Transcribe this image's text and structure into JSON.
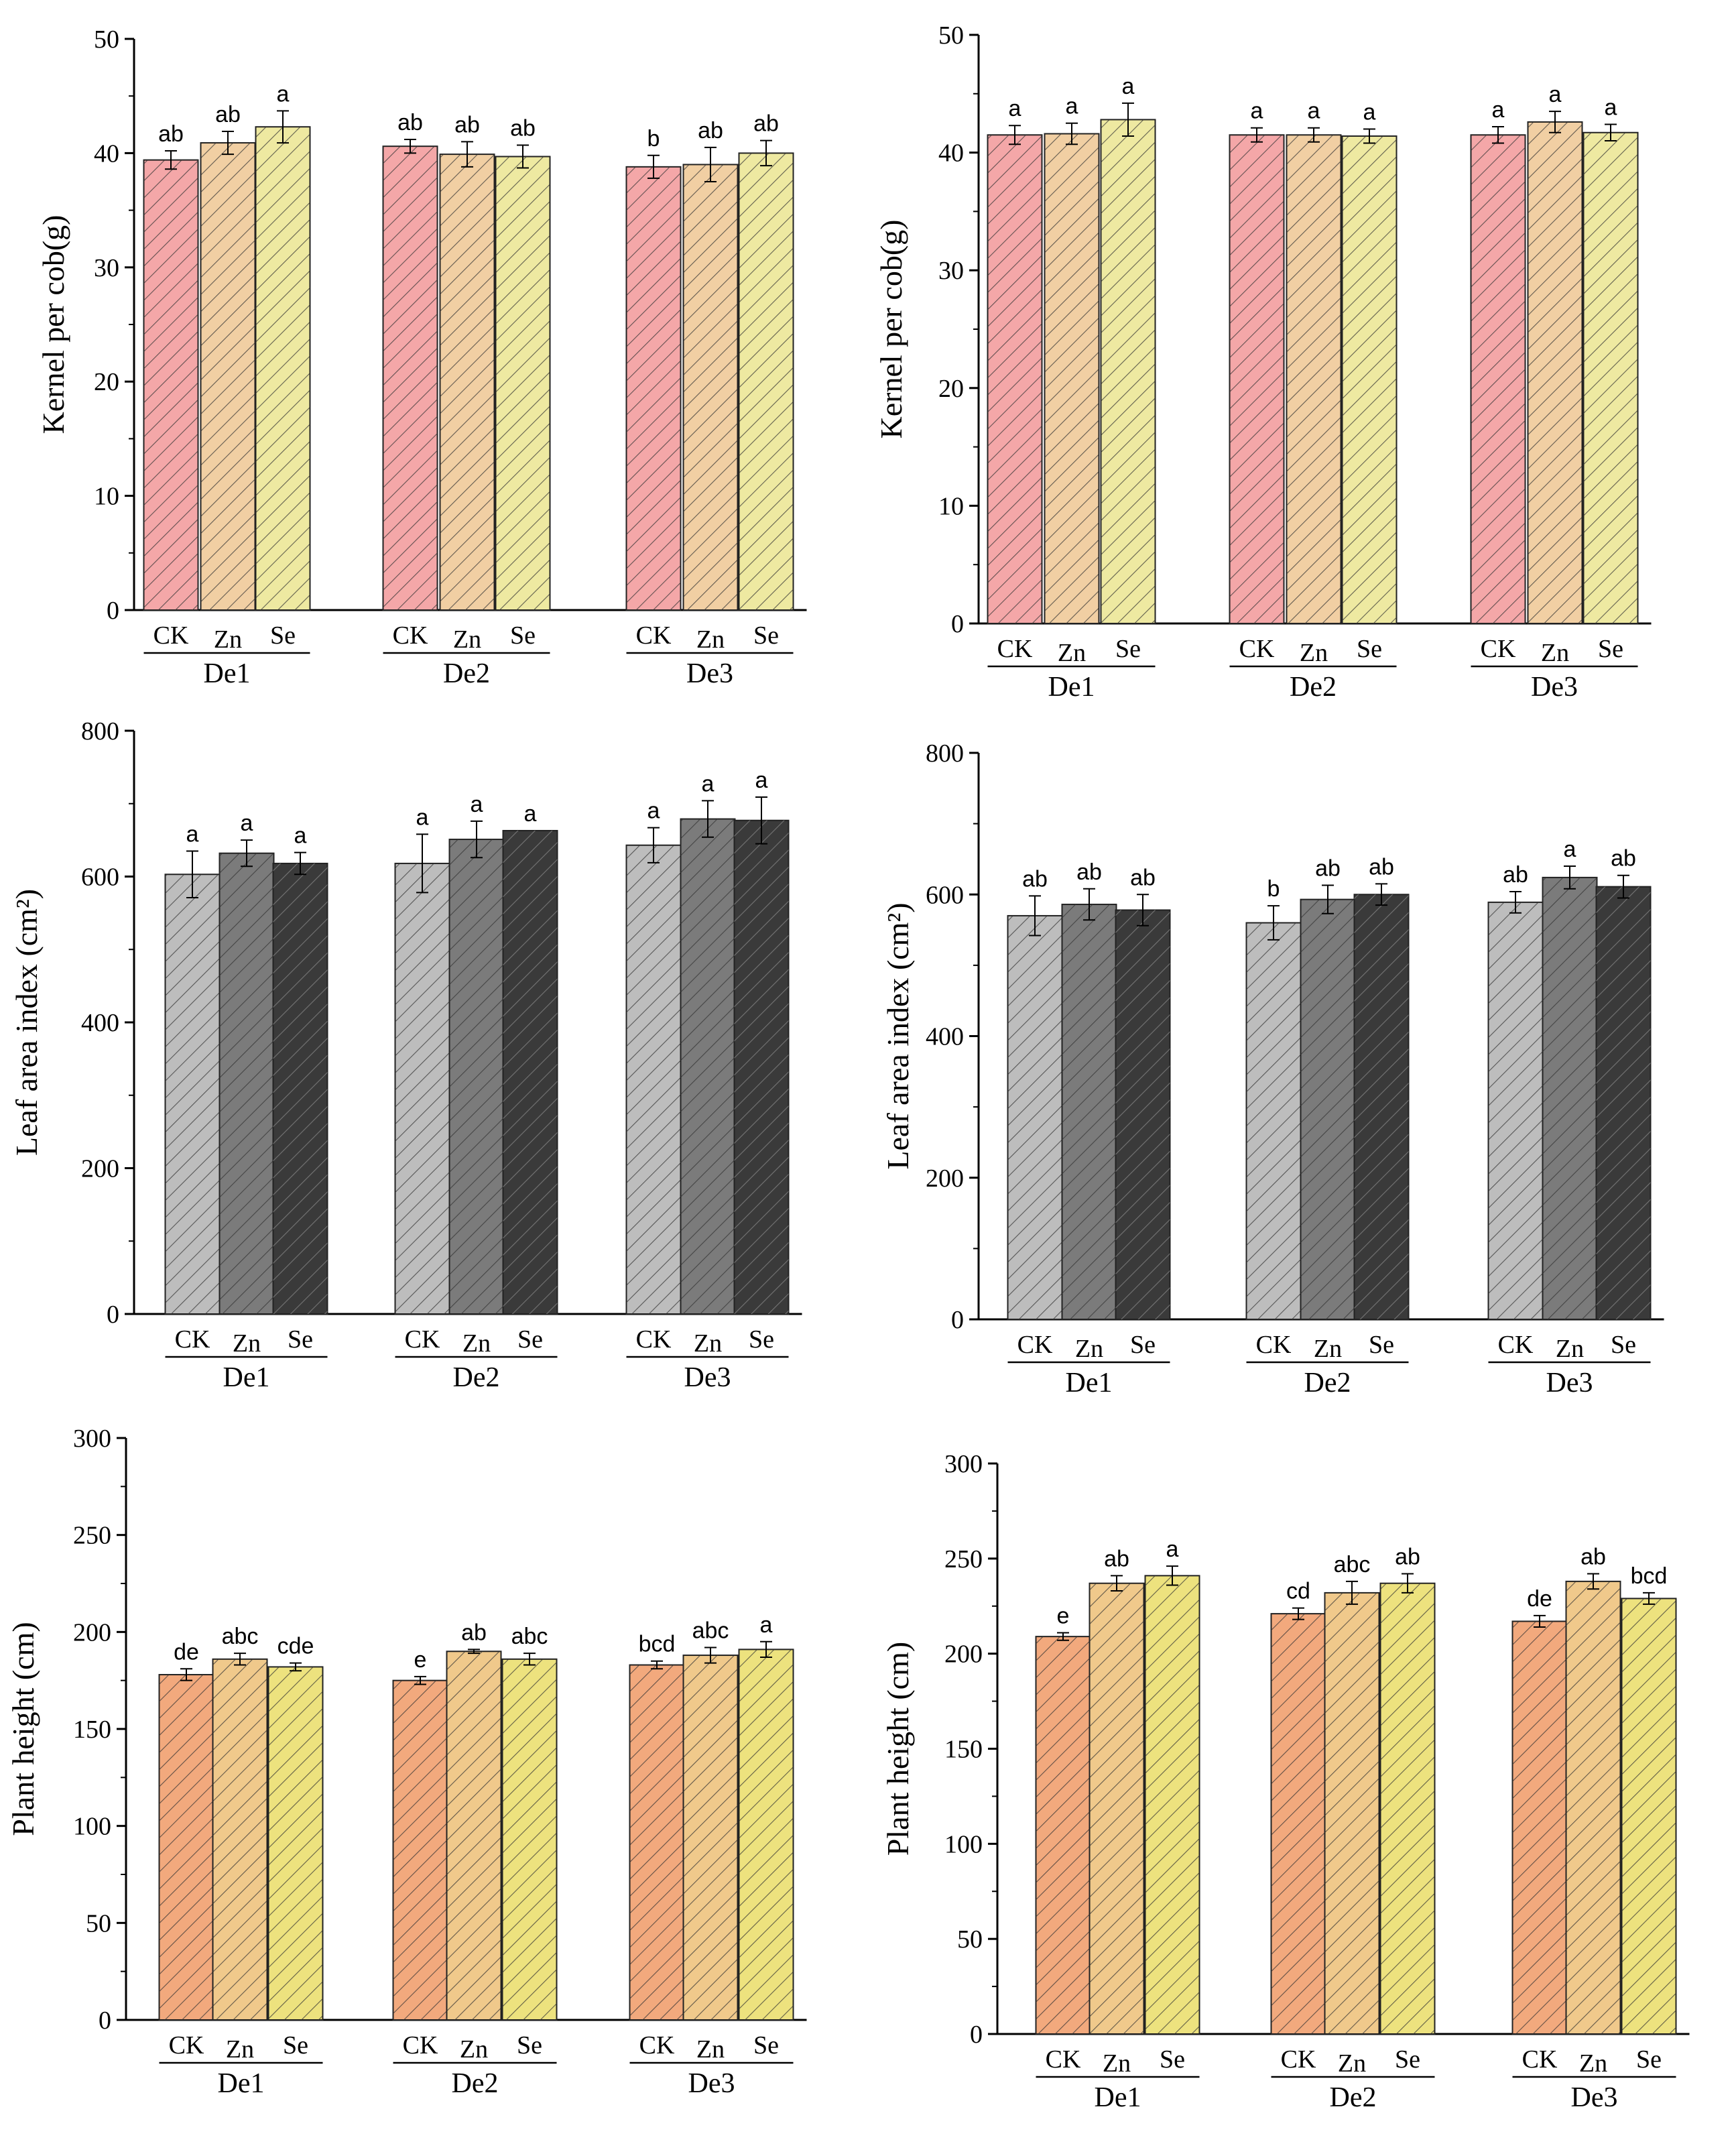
{
  "chart_data": [
    {
      "type": "bar",
      "ylabel": "Kernel per cob(g)",
      "ylim": [
        0,
        50
      ],
      "yticks": [
        0,
        10,
        20,
        30,
        40,
        50
      ],
      "groups": [
        "De1",
        "De2",
        "De3"
      ],
      "categories": [
        "CK",
        "Zn",
        "Se"
      ],
      "palette": "warm",
      "values": [
        [
          39.4,
          40.9,
          42.3
        ],
        [
          40.6,
          39.9,
          39.7
        ],
        [
          38.8,
          39.0,
          40.0
        ]
      ],
      "errors": [
        [
          0.8,
          1.0,
          1.4
        ],
        [
          0.6,
          1.1,
          1.0
        ],
        [
          1.0,
          1.5,
          1.1
        ]
      ],
      "letters": [
        [
          "ab",
          "ab",
          "a"
        ],
        [
          "ab",
          "ab",
          "ab"
        ],
        [
          "b",
          "ab",
          "ab"
        ]
      ]
    },
    {
      "type": "bar",
      "ylabel": "Kernel per cob(g)",
      "ylim": [
        0,
        50
      ],
      "yticks": [
        0,
        10,
        20,
        30,
        40,
        50
      ],
      "groups": [
        "De1",
        "De2",
        "De3"
      ],
      "categories": [
        "CK",
        "Zn",
        "Se"
      ],
      "palette": "warm",
      "values": [
        [
          41.5,
          41.6,
          42.8
        ],
        [
          41.5,
          41.5,
          41.4
        ],
        [
          41.5,
          42.6,
          41.7
        ]
      ],
      "errors": [
        [
          0.8,
          0.9,
          1.4
        ],
        [
          0.6,
          0.6,
          0.6
        ],
        [
          0.7,
          0.9,
          0.7
        ]
      ],
      "letters": [
        [
          "a",
          "a",
          "a"
        ],
        [
          "a",
          "a",
          "a"
        ],
        [
          "a",
          "a",
          "a"
        ]
      ]
    },
    {
      "type": "bar",
      "ylabel": "Leaf area index (cm²)",
      "ylim": [
        0,
        800
      ],
      "yticks": [
        0,
        200,
        400,
        600,
        800
      ],
      "groups": [
        "De1",
        "De2",
        "De3"
      ],
      "categories": [
        "CK",
        "Zn",
        "Se"
      ],
      "palette": "gray",
      "values": [
        [
          603,
          632,
          618
        ],
        [
          618,
          651,
          663
        ],
        [
          643,
          679,
          677
        ]
      ],
      "errors": [
        [
          32,
          18,
          15
        ],
        [
          40,
          25,
          0
        ],
        [
          24,
          25,
          32
        ]
      ],
      "letters": [
        [
          "a",
          "a",
          "a"
        ],
        [
          "a",
          "a",
          "a"
        ],
        [
          "a",
          "a",
          "a"
        ]
      ]
    },
    {
      "type": "bar",
      "ylabel": "Leaf area index (cm²)",
      "ylim": [
        0,
        800
      ],
      "yticks": [
        0,
        200,
        400,
        600,
        800
      ],
      "groups": [
        "De1",
        "De2",
        "De3"
      ],
      "categories": [
        "CK",
        "Zn",
        "Se"
      ],
      "palette": "gray",
      "values": [
        [
          570,
          586,
          578
        ],
        [
          560,
          593,
          600
        ],
        [
          589,
          624,
          611
        ]
      ],
      "errors": [
        [
          28,
          22,
          22
        ],
        [
          24,
          20,
          15
        ],
        [
          15,
          16,
          16
        ]
      ],
      "letters": [
        [
          "ab",
          "ab",
          "ab"
        ],
        [
          "b",
          "ab",
          "ab"
        ],
        [
          "ab",
          "a",
          "ab"
        ]
      ]
    },
    {
      "type": "bar",
      "ylabel": "Plant height (cm)",
      "ylim": [
        0,
        300
      ],
      "yticks": [
        0,
        50,
        100,
        150,
        200,
        250,
        300
      ],
      "groups": [
        "De1",
        "De2",
        "De3"
      ],
      "categories": [
        "CK",
        "Zn",
        "Se"
      ],
      "palette": "orange",
      "values": [
        [
          178,
          186,
          182
        ],
        [
          175,
          190,
          186
        ],
        [
          183,
          188,
          191
        ]
      ],
      "errors": [
        [
          3,
          3,
          2
        ],
        [
          2,
          1,
          3
        ],
        [
          2,
          4,
          4
        ]
      ],
      "letters": [
        [
          "de",
          "abc",
          "cde"
        ],
        [
          "e",
          "ab",
          "abc"
        ],
        [
          "bcd",
          "abc",
          "a"
        ]
      ]
    },
    {
      "type": "bar",
      "ylabel": "Plant height (cm)",
      "ylim": [
        0,
        300
      ],
      "yticks": [
        0,
        50,
        100,
        150,
        200,
        250,
        300
      ],
      "groups": [
        "De1",
        "De2",
        "De3"
      ],
      "categories": [
        "CK",
        "Zn",
        "Se"
      ],
      "palette": "orange",
      "values": [
        [
          209,
          237,
          241
        ],
        [
          221,
          232,
          237
        ],
        [
          217,
          238,
          229
        ]
      ],
      "errors": [
        [
          2,
          4,
          5
        ],
        [
          3,
          6,
          5
        ],
        [
          3,
          4,
          3
        ]
      ],
      "letters": [
        [
          "e",
          "ab",
          "a"
        ],
        [
          "cd",
          "abc",
          "ab"
        ],
        [
          "de",
          "ab",
          "bcd"
        ]
      ]
    }
  ],
  "palettes": {
    "warm": [
      "#f4a7a8",
      "#f1cfa3",
      "#eee9a1"
    ],
    "gray": [
      "#bdbdbd",
      "#7b7b7b",
      "#3a3a3a"
    ],
    "orange": [
      "#f2a97d",
      "#f0c98b",
      "#ede27e"
    ]
  }
}
